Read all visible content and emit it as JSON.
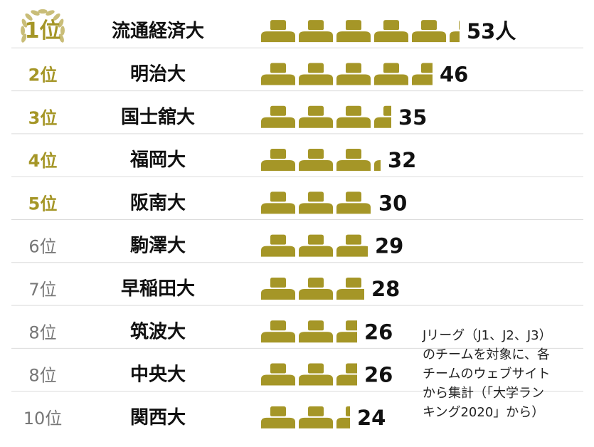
{
  "chart_data": {
    "type": "bar",
    "unit": "人",
    "categories": [
      "流通経済大",
      "明治大",
      "国士舘大",
      "福岡大",
      "阪南大",
      "駒澤大",
      "早稲田大",
      "筑波大",
      "中央大",
      "関西大"
    ],
    "ranks": [
      "1位",
      "2位",
      "3位",
      "4位",
      "5位",
      "6位",
      "7位",
      "8位",
      "8位",
      "10位"
    ],
    "values": [
      53,
      46,
      35,
      32,
      30,
      29,
      28,
      26,
      26,
      24
    ],
    "value_labels": [
      "53人",
      "46",
      "35",
      "32",
      "30",
      "29",
      "28",
      "26",
      "26",
      "24"
    ],
    "icon_represents": 10,
    "colors": {
      "icon": "#a59627",
      "rank_top5": "#a59627",
      "rank_rest": "#777777"
    },
    "icon": "person-silhouette-icon",
    "note": "Jリーグ（J1、J2、J3）\nのチームを対象に、各\nチームのウェブサイト\nから集計（「大学ラン\nキング2020」から）"
  }
}
